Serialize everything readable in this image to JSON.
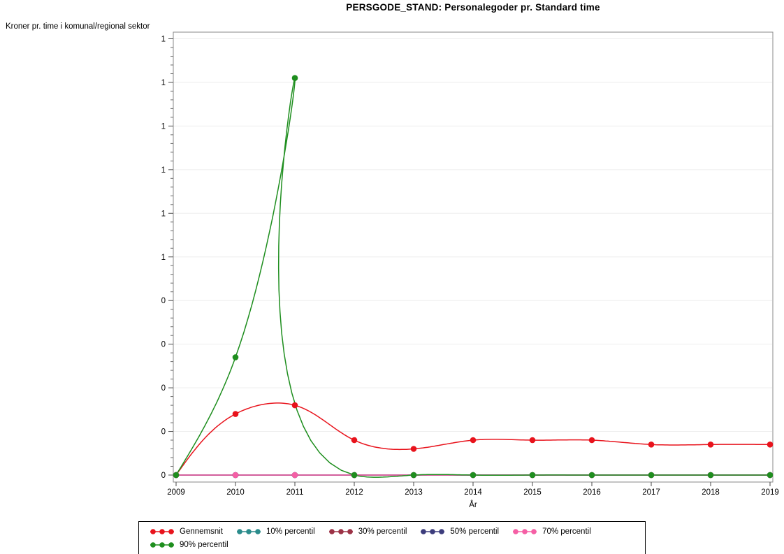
{
  "chart_data": {
    "type": "line",
    "title": "PERSGODE_STAND: Personalegoder pr. Standard time",
    "ylabel": "Kroner pr. time i komunal/regional sektor",
    "xlabel": "År",
    "x": [
      2009,
      2010,
      2011,
      2012,
      2013,
      2014,
      2015,
      2016,
      2017,
      2018,
      2019
    ],
    "x_tick_labels": [
      "2009",
      "2010",
      "2011",
      "2012",
      "2013",
      "2014",
      "2015",
      "2016",
      "2017",
      "2018",
      "2019"
    ],
    "series": [
      {
        "name": "Gennemsnit",
        "color": "#e8131c",
        "marker": "circle",
        "values": [
          0,
          0.14,
          0.16,
          0.08,
          0.06,
          0.08,
          0.08,
          0.08,
          0.07,
          0.07,
          0.07
        ]
      },
      {
        "name": "10% percentil",
        "color": "#2b8c8c",
        "marker": "circle",
        "values": [
          0,
          0,
          0,
          0,
          0,
          0,
          0,
          0,
          0,
          0,
          0
        ]
      },
      {
        "name": "30% percentil",
        "color": "#9c3246",
        "marker": "circle",
        "values": [
          0,
          0,
          0,
          0,
          0,
          0,
          0,
          0,
          0,
          0,
          0
        ]
      },
      {
        "name": "50% percentil",
        "color": "#3c3c7c",
        "marker": "circle",
        "values": [
          0,
          0,
          0,
          0,
          0,
          0,
          0,
          0,
          0,
          0,
          0
        ]
      },
      {
        "name": "70% percentil",
        "color": "#f55fa5",
        "marker": "circle",
        "values": [
          0,
          0,
          0,
          0,
          0,
          0,
          0,
          0,
          0,
          0,
          0
        ]
      },
      {
        "name": "90% percentil",
        "color": "#1e8e1e",
        "marker": "circle",
        "values": [
          0,
          0.27,
          0.91,
          0,
          0,
          0,
          0,
          0,
          0,
          0,
          0
        ]
      }
    ],
    "ylim": [
      0,
      1
    ],
    "y_ticks": [
      {
        "value": 1.0,
        "label": "1"
      },
      {
        "value": 0.9,
        "label": "1"
      },
      {
        "value": 0.8,
        "label": "1"
      },
      {
        "value": 0.7,
        "label": "1"
      },
      {
        "value": 0.6,
        "label": "1"
      },
      {
        "value": 0.5,
        "label": "1"
      },
      {
        "value": 0.4,
        "label": "0"
      },
      {
        "value": 0.3,
        "label": "0"
      },
      {
        "value": 0.2,
        "label": "0"
      },
      {
        "value": 0.1,
        "label": "0"
      },
      {
        "value": 0.0,
        "label": "0"
      }
    ],
    "grid": true,
    "legend_position": "bottom",
    "line_interpolation": "smooth",
    "colors": {
      "grid": "#ededed",
      "frame": "#8a8a8a",
      "tick": "#4a4a4a",
      "text": "#000000",
      "background": "#ffffff"
    }
  }
}
